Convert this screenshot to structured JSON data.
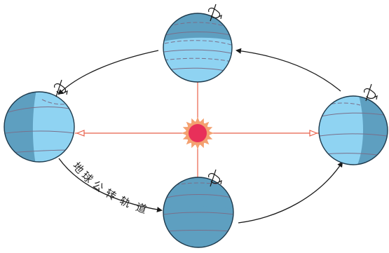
{
  "orbit_label": "地球公转轨道",
  "colors": {
    "orbit": "#1a1a1a",
    "sun_core": "#e8305a",
    "sun_glow": "#f4a070",
    "ray": "#e8604a",
    "earth_day": "#8fd3f2",
    "earth_night": "#5e9fc0",
    "earth_outline": "#1e3a4c",
    "latitude": "#7a6f8a"
  }
}
